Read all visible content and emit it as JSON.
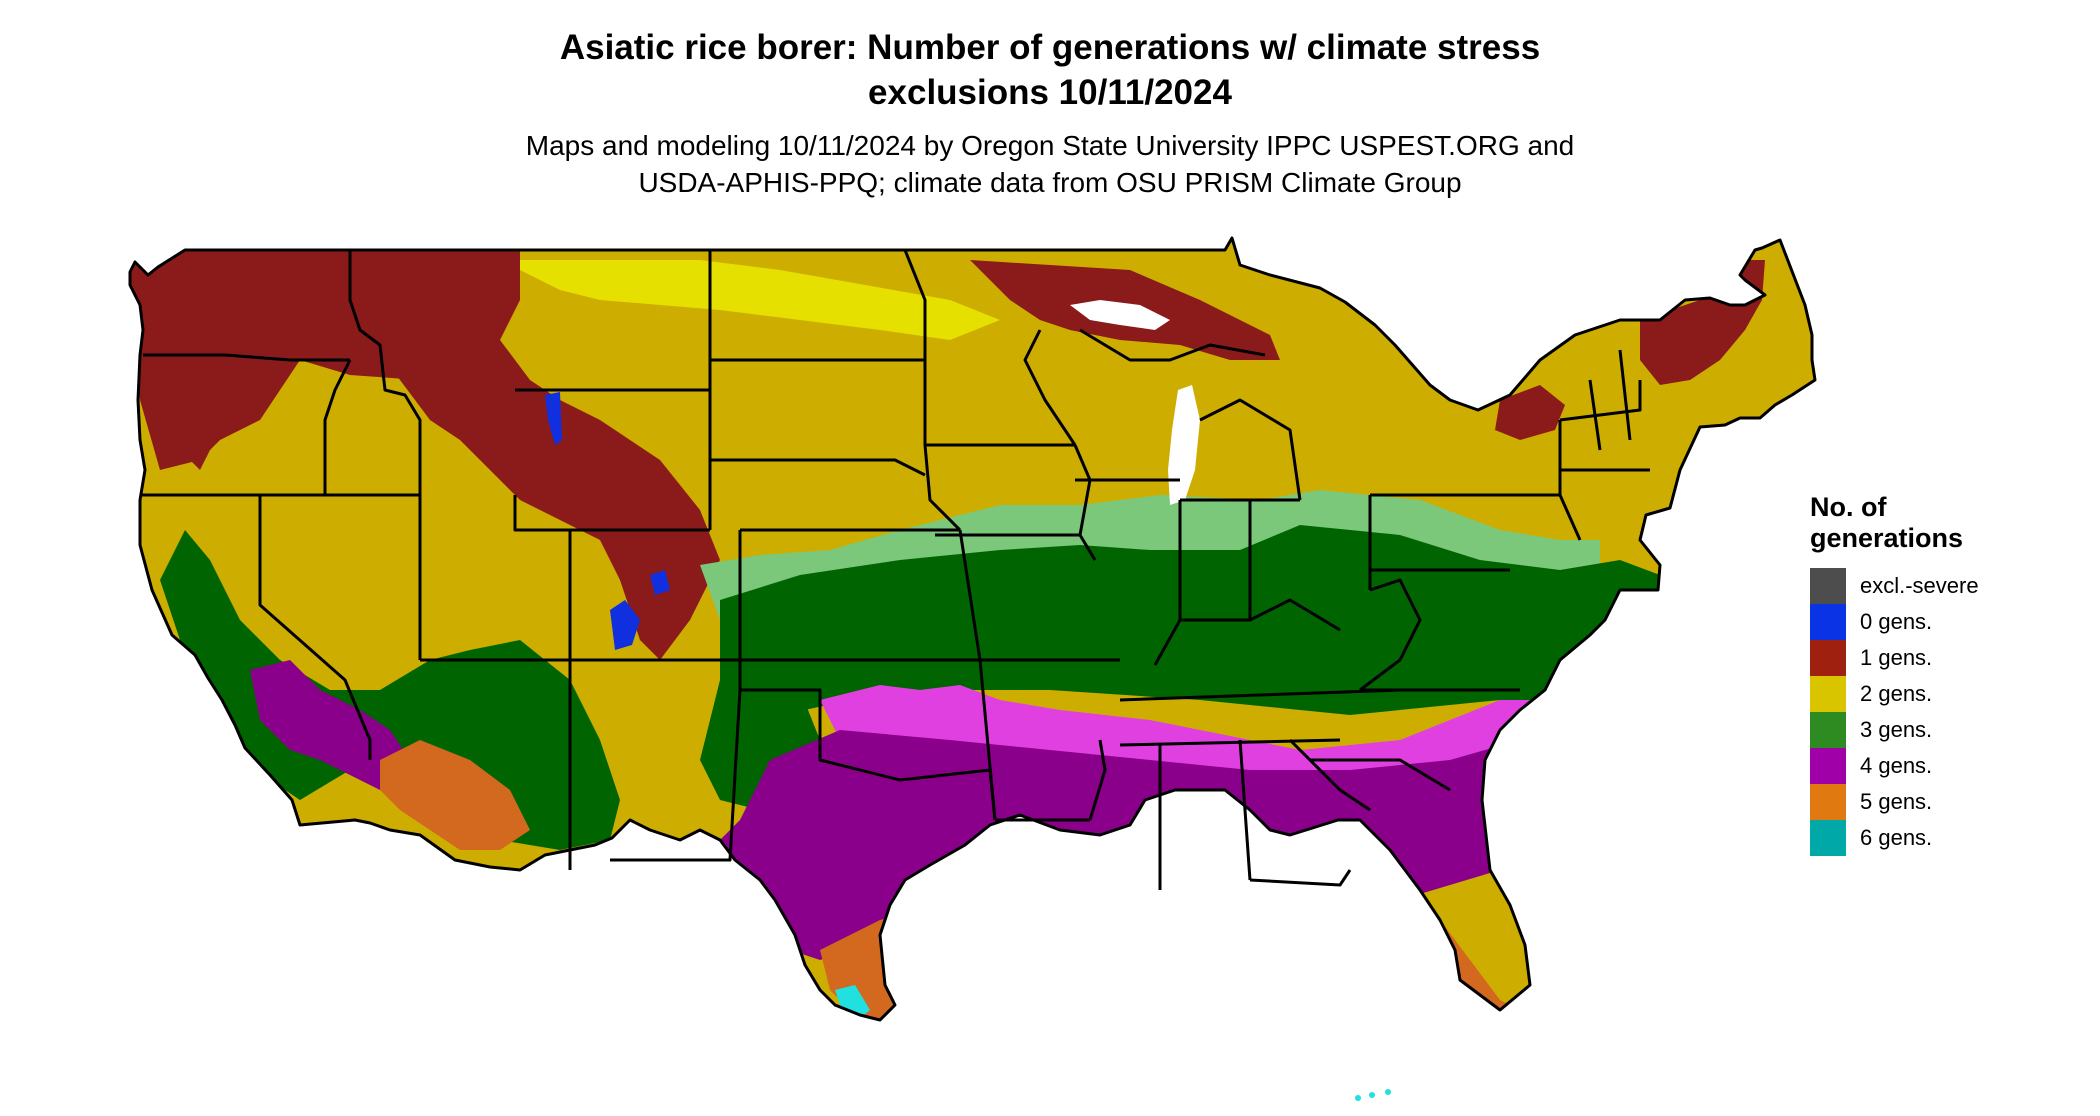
{
  "title": {
    "line1": "Asiatic rice borer: Number of generations w/ climate stress",
    "line2": "exclusions 10/11/2024"
  },
  "subtitle": {
    "line1": "Maps and modeling 10/11/2024 by Oregon State University IPPC USPEST.ORG and",
    "line2": "USDA-APHIS-PPQ; climate data from OSU PRISM Climate Group"
  },
  "legend": {
    "title_line1": "No. of",
    "title_line2": "generations",
    "items": [
      {
        "label": "excl.-severe",
        "color": "#4D4D4D"
      },
      {
        "label": "0 gens.",
        "color": "#0A33E6"
      },
      {
        "label": "1 gens.",
        "color": "#A02010"
      },
      {
        "label": "2 gens.",
        "color": "#D9C400"
      },
      {
        "label": "3 gens.",
        "color": "#2E8B22"
      },
      {
        "label": "4 gens.",
        "color": "#A000A8"
      },
      {
        "label": "5 gens.",
        "color": "#E07A10"
      },
      {
        "label": "6 gens.",
        "color": "#00A8A8"
      }
    ]
  },
  "map": {
    "region": "Contiguous United States",
    "colors": {
      "one_gen_map": "#8B1A1A",
      "two_gen_map": "#CDAE00",
      "two_gen_light": "#E6E000",
      "three_gen_map": "#006400",
      "three_gen_light": "#7BC87B",
      "four_gen_map": "#8A008A",
      "four_gen_light": "#E040E0",
      "five_gen_map": "#D2691E",
      "six_gen_map": "#20E0E0",
      "zero_gen_map": "#1030E0",
      "border": "#000000",
      "water": "#ffffff"
    }
  }
}
